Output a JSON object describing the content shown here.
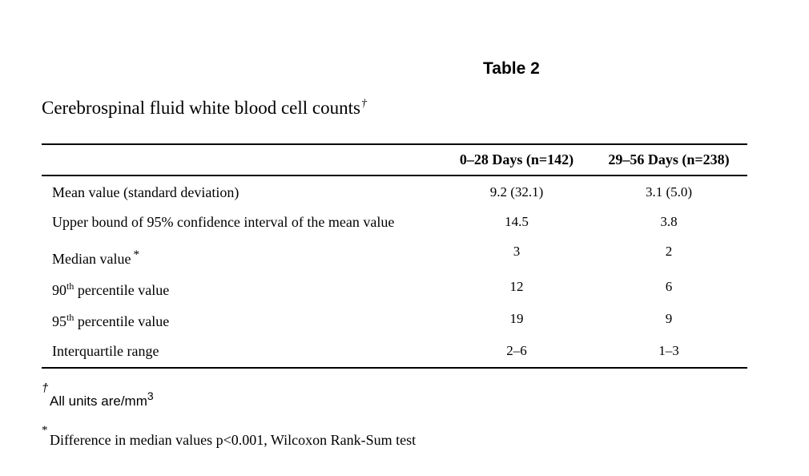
{
  "table_label": "Table 2",
  "caption": {
    "text": "Cerebrospinal fluid white blood cell counts",
    "mark": "†"
  },
  "columns": [
    "0–28 Days (n=142)",
    "29–56 Days (n=238)"
  ],
  "rows": [
    {
      "label": "Mean value (standard deviation)",
      "sup": "",
      "mark": "",
      "values": [
        "9.2 (32.1)",
        "3.1 (5.0)"
      ]
    },
    {
      "label": "Upper bound of 95% confidence interval of the mean value",
      "sup": "",
      "mark": "",
      "values": [
        "14.5",
        "3.8"
      ]
    },
    {
      "label": "Median value",
      "sup": "",
      "mark": "*",
      "values": [
        "3",
        "2"
      ]
    },
    {
      "label_pre": "90",
      "sup": "th",
      "label": " percentile value",
      "mark": "",
      "values": [
        "12",
        "6"
      ]
    },
    {
      "label_pre": "95",
      "sup": "th",
      "label": " percentile value",
      "mark": "",
      "values": [
        "19",
        "9"
      ]
    },
    {
      "label": "Interquartile range",
      "sup": "",
      "mark": "",
      "values": [
        "2–6",
        "1–3"
      ]
    }
  ],
  "footnotes": [
    {
      "mark": "†",
      "text": "All units are/mm",
      "sup": "3"
    },
    {
      "mark": "*",
      "text": "Difference in median values p<0.001, Wilcoxon Rank-Sum test",
      "sup": ""
    }
  ]
}
